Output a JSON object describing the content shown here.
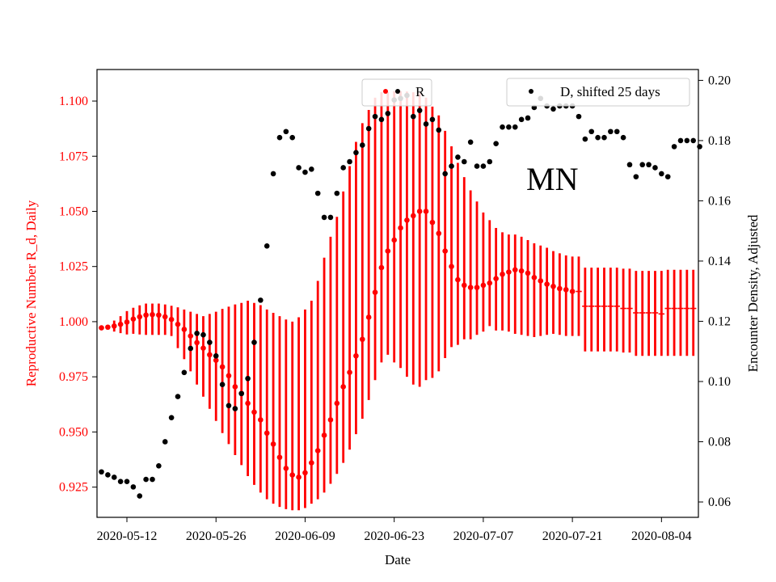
{
  "chart_data": {
    "type": "scatter",
    "xlabel": "Date",
    "ylabel_left": "Reproductive Number R_d, Daily",
    "ylabel_right": "Encounter Density, Adjusted",
    "annotation": "MN",
    "x_start_date": "2020-05-08",
    "x_end_date": "2020-08-10",
    "xlim": [
      -0.7,
      93.8
    ],
    "ylim_left": [
      0.9113,
      1.1143
    ],
    "ylim_right": [
      0.0549,
      0.2036
    ],
    "x_ticks": [
      {
        "day": 4,
        "label": "2020-05-12"
      },
      {
        "day": 18,
        "label": "2020-05-26"
      },
      {
        "day": 32,
        "label": "2020-06-09"
      },
      {
        "day": 46,
        "label": "2020-06-23"
      },
      {
        "day": 60,
        "label": "2020-07-07"
      },
      {
        "day": 74,
        "label": "2020-07-21"
      },
      {
        "day": 88,
        "label": "2020-08-04"
      }
    ],
    "y_ticks_left": [
      {
        "value": 0.925,
        "label": "0.925"
      },
      {
        "value": 0.95,
        "label": "0.950"
      },
      {
        "value": 0.975,
        "label": "0.975"
      },
      {
        "value": 1.0,
        "label": "1.000"
      },
      {
        "value": 1.025,
        "label": "1.025"
      },
      {
        "value": 1.05,
        "label": "1.050"
      },
      {
        "value": 1.075,
        "label": "1.075"
      },
      {
        "value": 1.1,
        "label": "1.100"
      }
    ],
    "y_ticks_right": [
      {
        "value": 0.06,
        "label": "0.06"
      },
      {
        "value": 0.08,
        "label": "0.08"
      },
      {
        "value": 0.1,
        "label": "0.10"
      },
      {
        "value": 0.12,
        "label": "0.12"
      },
      {
        "value": 0.14,
        "label": "0.14"
      },
      {
        "value": 0.16,
        "label": "0.16"
      },
      {
        "value": 0.18,
        "label": "0.18"
      },
      {
        "value": 0.2,
        "label": "0.20"
      }
    ],
    "legend": {
      "r": {
        "label": "R",
        "placement": "top-center"
      },
      "d": {
        "label": "D, shifted 25 days",
        "placement": "top-right"
      }
    },
    "colors": {
      "r": "#ff0000",
      "d": "#000000"
    },
    "series": [
      {
        "name": "R",
        "axis": "left",
        "estimated_from_day": 75,
        "x_start_day": 0,
        "values": [
          0.9972,
          0.9975,
          0.998,
          0.9988,
          0.9998,
          1.0012,
          1.0022,
          1.003,
          1.0032,
          1.003,
          1.0022,
          1.001,
          0.9988,
          0.9965,
          0.9935,
          0.9905,
          0.988,
          0.985,
          0.9825,
          0.9795,
          0.9755,
          0.9705,
          0.9675,
          0.963,
          0.959,
          0.9555,
          0.9495,
          0.9445,
          0.9385,
          0.9335,
          0.9305,
          0.9295,
          0.9315,
          0.936,
          0.9415,
          0.9485,
          0.9555,
          0.963,
          0.9705,
          0.977,
          0.9845,
          0.992,
          1.002,
          1.0133,
          1.0245,
          1.032,
          1.037,
          1.0425,
          1.046,
          1.048,
          1.05,
          1.05,
          1.045,
          1.04,
          1.032,
          1.025,
          1.019,
          1.0165,
          1.0155,
          1.0155,
          1.0165,
          1.0175,
          1.0195,
          1.0215,
          1.0225,
          1.0235,
          1.023,
          1.022,
          1.02,
          1.0185,
          1.017,
          1.016,
          1.015,
          1.0145,
          1.0137,
          1.0137,
          1.007,
          1.007,
          1.007,
          1.007,
          1.007,
          1.007,
          1.006,
          1.006,
          1.004,
          1.004,
          1.004,
          1.004,
          1.0035,
          1.006,
          1.006,
          1.006,
          1.006,
          1.006
        ],
        "lower": [
          0.9972,
          0.9965,
          0.9955,
          0.9948,
          0.9942,
          0.9945,
          0.9942,
          0.994,
          0.994,
          0.994,
          0.994,
          0.9935,
          0.988,
          0.983,
          0.9775,
          0.9715,
          0.966,
          0.9605,
          0.955,
          0.9495,
          0.9445,
          0.9395,
          0.935,
          0.93,
          0.926,
          0.9225,
          0.9195,
          0.9175,
          0.916,
          0.915,
          0.9145,
          0.9145,
          0.9155,
          0.9175,
          0.9195,
          0.9225,
          0.9265,
          0.931,
          0.936,
          0.942,
          0.949,
          0.956,
          0.9645,
          0.9735,
          0.9815,
          0.985,
          0.9815,
          0.979,
          0.975,
          0.9715,
          0.9705,
          0.9735,
          0.9745,
          0.9775,
          0.9835,
          0.9885,
          0.9895,
          0.992,
          0.992,
          0.994,
          0.9955,
          0.998,
          0.996,
          0.996,
          0.9955,
          0.9945,
          0.994,
          0.9935,
          0.993,
          0.9935,
          0.994,
          0.9945,
          0.994,
          0.9935,
          0.9935,
          0.9935,
          0.9865,
          0.9865,
          0.9865,
          0.9865,
          0.9865,
          0.9865,
          0.986,
          0.986,
          0.9845,
          0.9845,
          0.9845,
          0.9845,
          0.9845,
          0.9845,
          0.9845,
          0.9845,
          0.9845,
          0.9845
        ],
        "upper": [
          0.9972,
          0.9985,
          1.0005,
          1.0025,
          1.0048,
          1.0063,
          1.0074,
          1.0082,
          1.0082,
          1.0082,
          1.0078,
          1.0072,
          1.0065,
          1.0055,
          1.0045,
          1.0035,
          1.0025,
          1.0035,
          1.0045,
          1.0058,
          1.0068,
          1.0078,
          1.0085,
          1.0095,
          1.0085,
          1.0075,
          1.0055,
          1.004,
          1.0025,
          1.001,
          1.0,
          1.002,
          1.0055,
          1.0095,
          1.0185,
          1.029,
          1.0385,
          1.0475,
          1.059,
          1.0705,
          1.0815,
          1.09,
          1.096,
          1.1015,
          1.104,
          1.104,
          1.1045,
          1.1045,
          1.1043,
          1.104,
          1.1035,
          1.1015,
          1.0975,
          1.0935,
          1.0865,
          1.0795,
          1.072,
          1.0655,
          1.0595,
          1.0545,
          1.0495,
          1.046,
          1.0425,
          1.0405,
          1.0395,
          1.0395,
          1.0385,
          1.037,
          1.0355,
          1.0345,
          1.0335,
          1.032,
          1.031,
          1.03,
          1.0295,
          1.0295,
          1.0245,
          1.0245,
          1.0245,
          1.0245,
          1.0245,
          1.0245,
          1.024,
          1.024,
          1.023,
          1.023,
          1.023,
          1.023,
          1.023,
          1.0235,
          1.0235,
          1.0235,
          1.0235,
          1.0235
        ]
      },
      {
        "name": "D, shifted 25 days",
        "axis": "right",
        "points": [
          [
            0,
            0.07
          ],
          [
            1,
            0.069
          ],
          [
            2,
            0.0682
          ],
          [
            3,
            0.0668
          ],
          [
            4,
            0.0668
          ],
          [
            5,
            0.065
          ],
          [
            6,
            0.062
          ],
          [
            7,
            0.0675
          ],
          [
            8,
            0.0675
          ],
          [
            9,
            0.072
          ],
          [
            10,
            0.08
          ],
          [
            11,
            0.088
          ],
          [
            12,
            0.095
          ],
          [
            13,
            0.103
          ],
          [
            14,
            0.111
          ],
          [
            15,
            0.116
          ],
          [
            16,
            0.1155
          ],
          [
            17,
            0.113
          ],
          [
            18,
            0.1085
          ],
          [
            19,
            0.099
          ],
          [
            20,
            0.092
          ],
          [
            21,
            0.091
          ],
          [
            22,
            0.096
          ],
          [
            23,
            0.101
          ],
          [
            24,
            0.113
          ],
          [
            25,
            0.127
          ],
          [
            26,
            0.145
          ],
          [
            27,
            0.169
          ],
          [
            28,
            0.181
          ],
          [
            29,
            0.183
          ],
          [
            30,
            0.181
          ],
          [
            31,
            0.171
          ],
          [
            32,
            0.1695
          ],
          [
            33,
            0.1705
          ],
          [
            34,
            0.1625
          ],
          [
            35,
            0.1545
          ],
          [
            36,
            0.1545
          ],
          [
            37,
            0.1625
          ],
          [
            38,
            0.171
          ],
          [
            39,
            0.173
          ],
          [
            40,
            0.176
          ],
          [
            41,
            0.1785
          ],
          [
            42,
            0.184
          ],
          [
            43,
            0.188
          ],
          [
            44,
            0.187
          ],
          [
            45,
            0.189
          ],
          [
            46,
            0.1935
          ],
          [
            47,
            0.194
          ],
          [
            48,
            0.195
          ],
          [
            49,
            0.188
          ],
          [
            50,
            0.19
          ],
          [
            51,
            0.1855
          ],
          [
            52,
            0.187
          ],
          [
            53,
            0.1835
          ],
          [
            54,
            0.169
          ],
          [
            55,
            0.1715
          ],
          [
            56,
            0.1745
          ],
          [
            57,
            0.173
          ],
          [
            58,
            0.1795
          ],
          [
            59,
            0.1715
          ],
          [
            60,
            0.1715
          ],
          [
            61,
            0.173
          ],
          [
            62,
            0.179
          ],
          [
            63,
            0.1845
          ],
          [
            64,
            0.1845
          ],
          [
            65,
            0.1845
          ],
          [
            66,
            0.187
          ],
          [
            67,
            0.1875
          ],
          [
            68,
            0.191
          ],
          [
            69,
            0.194
          ],
          [
            70,
            0.1915
          ],
          [
            71,
            0.1905
          ],
          [
            72,
            0.1915
          ],
          [
            73,
            0.1915
          ],
          [
            74,
            0.1915
          ],
          [
            75,
            0.188
          ],
          [
            76,
            0.1805
          ],
          [
            77,
            0.183
          ],
          [
            78,
            0.181
          ],
          [
            79,
            0.181
          ],
          [
            80,
            0.183
          ],
          [
            81,
            0.183
          ],
          [
            82,
            0.181
          ],
          [
            83,
            0.172
          ],
          [
            84,
            0.168
          ],
          [
            85,
            0.172
          ],
          [
            86,
            0.172
          ],
          [
            87,
            0.171
          ],
          [
            88,
            0.169
          ],
          [
            89,
            0.168
          ],
          [
            90,
            0.178
          ],
          [
            91,
            0.18
          ],
          [
            92,
            0.18
          ],
          [
            93,
            0.18
          ],
          [
            94,
            0.178
          ]
        ]
      }
    ]
  }
}
